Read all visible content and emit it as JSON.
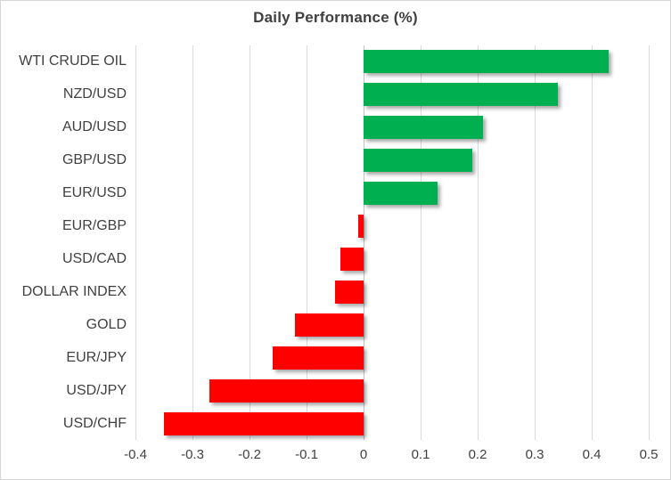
{
  "title": "Daily Performance (%)",
  "colors": {
    "positive_bar": "#00B050",
    "negative_bar": "#FF0000",
    "gridline": "#D9D9D9",
    "zero_line": "#C3C3C3",
    "text": "#404040",
    "background": "#FFFFFF",
    "frame_border": "#D6D6D6"
  },
  "chart_data": {
    "type": "bar",
    "orientation": "horizontal",
    "title": "Daily Performance (%)",
    "categories": [
      "WTI CRUDE OIL",
      "NZD/USD",
      "AUD/USD",
      "GBP/USD",
      "EUR/USD",
      "EUR/GBP",
      "USD/CAD",
      "DOLLAR INDEX",
      "GOLD",
      "EUR/JPY",
      "USD/JPY",
      "USD/CHF"
    ],
    "values": [
      0.43,
      0.34,
      0.21,
      0.19,
      0.13,
      -0.01,
      -0.04,
      -0.05,
      -0.12,
      -0.16,
      -0.27,
      -0.35
    ],
    "xlabel": "",
    "ylabel": "",
    "xlim": [
      -0.4,
      0.5
    ],
    "x_ticks": [
      -0.4,
      -0.3,
      -0.2,
      -0.1,
      0,
      0.1,
      0.2,
      0.3,
      0.4,
      0.5
    ],
    "x_tick_labels": [
      "-0.4",
      "-0.3",
      "-0.2",
      "-0.1",
      "0",
      "0.1",
      "0.2",
      "0.3",
      "0.4",
      "0.5"
    ],
    "grid": true,
    "legend": false,
    "bar_style": "solid with drop shadow"
  }
}
